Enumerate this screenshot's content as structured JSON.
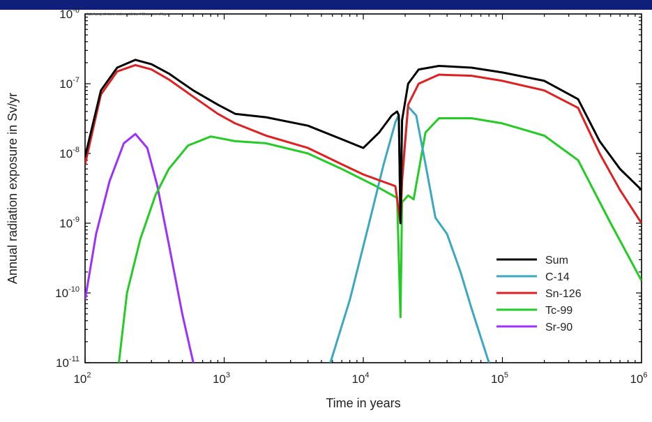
{
  "chart_data": {
    "type": "line",
    "title": "",
    "note": "label project stone sicken sidebar il Blow xx-x of lay",
    "xlabel": "Time in years",
    "ylabel": "Annual radiation exposure in Sv/yr",
    "xscale": "log",
    "yscale": "log",
    "xlim": [
      100,
      1000000
    ],
    "ylim": [
      1e-11,
      1e-06
    ],
    "x_ticks": [
      {
        "base": "10",
        "exp": "2",
        "value": 100
      },
      {
        "base": "10",
        "exp": "3",
        "value": 1000
      },
      {
        "base": "10",
        "exp": "4",
        "value": 10000
      },
      {
        "base": "10",
        "exp": "5",
        "value": 100000
      },
      {
        "base": "10",
        "exp": "6",
        "value": 1000000
      }
    ],
    "y_ticks": [
      {
        "base": "10",
        "exp": "-11",
        "value": 1e-11
      },
      {
        "base": "10",
        "exp": "-10",
        "value": 1e-10
      },
      {
        "base": "10",
        "exp": "-9",
        "value": 1e-09
      },
      {
        "base": "10",
        "exp": "-8",
        "value": 1e-08
      },
      {
        "base": "10",
        "exp": "-7",
        "value": 1e-07
      },
      {
        "base": "10",
        "exp": "-6",
        "value": 1e-06
      }
    ],
    "legend_position": "bottom-right",
    "grid": false,
    "series": [
      {
        "name": "Sum",
        "color": "#000000",
        "points": [
          [
            100,
            9e-09
          ],
          [
            130,
            8e-08
          ],
          [
            170,
            1.7e-07
          ],
          [
            230,
            2.2e-07
          ],
          [
            300,
            1.9e-07
          ],
          [
            400,
            1.4e-07
          ],
          [
            600,
            8e-08
          ],
          [
            900,
            5e-08
          ],
          [
            1200,
            3.7e-08
          ],
          [
            2000,
            3.3e-08
          ],
          [
            4000,
            2.5e-08
          ],
          [
            7000,
            1.6e-08
          ],
          [
            10000,
            1.2e-08
          ],
          [
            13000,
            2e-08
          ],
          [
            16000,
            3.5e-08
          ],
          [
            17500,
            4e-08
          ],
          [
            18000,
            3.5e-08
          ],
          [
            18500,
            1e-09
          ],
          [
            19000,
            3e-08
          ],
          [
            21000,
            1e-07
          ],
          [
            25000,
            1.6e-07
          ],
          [
            35000,
            1.8e-07
          ],
          [
            60000,
            1.7e-07
          ],
          [
            100000,
            1.45e-07
          ],
          [
            200000,
            1.1e-07
          ],
          [
            350000,
            6e-08
          ],
          [
            500000,
            1.5e-08
          ],
          [
            700000,
            6e-09
          ],
          [
            1000000,
            3e-09
          ]
        ]
      },
      {
        "name": "C-14",
        "color": "#3aa8c1",
        "points": [
          [
            5800,
            1e-11
          ],
          [
            8000,
            8e-11
          ],
          [
            11000,
            1e-09
          ],
          [
            14000,
            7e-09
          ],
          [
            17000,
            2.8e-08
          ],
          [
            18000,
            3.6e-08
          ],
          [
            18500,
            1e-09
          ],
          [
            19000,
            5e-09
          ],
          [
            21000,
            4.7e-08
          ],
          [
            24000,
            3.5e-08
          ],
          [
            28000,
            7e-09
          ],
          [
            33000,
            1.2e-09
          ],
          [
            40000,
            7e-10
          ],
          [
            50000,
            2e-10
          ],
          [
            60000,
            6e-11
          ],
          [
            80000,
            1e-11
          ]
        ]
      },
      {
        "name": "Sn-126",
        "color": "#e02020",
        "points": [
          [
            100,
            7e-09
          ],
          [
            130,
            7e-08
          ],
          [
            170,
            1.5e-07
          ],
          [
            230,
            1.85e-07
          ],
          [
            300,
            1.6e-07
          ],
          [
            400,
            1.15e-07
          ],
          [
            600,
            6.5e-08
          ],
          [
            900,
            3.7e-08
          ],
          [
            1200,
            2.7e-08
          ],
          [
            2000,
            1.8e-08
          ],
          [
            4000,
            1.2e-08
          ],
          [
            7000,
            7e-09
          ],
          [
            10000,
            5e-09
          ],
          [
            17000,
            3.4e-09
          ],
          [
            18000,
            1.5e-09
          ],
          [
            18500,
            1e-09
          ],
          [
            19000,
            4e-09
          ],
          [
            21000,
            5e-08
          ],
          [
            25000,
            1e-07
          ],
          [
            35000,
            1.35e-07
          ],
          [
            60000,
            1.3e-07
          ],
          [
            100000,
            1.1e-07
          ],
          [
            200000,
            8e-08
          ],
          [
            350000,
            4.5e-08
          ],
          [
            500000,
            1e-08
          ],
          [
            700000,
            3e-09
          ],
          [
            1000000,
            1e-09
          ]
        ]
      },
      {
        "name": "Tc-99",
        "color": "#22cc22",
        "points": [
          [
            175,
            1e-11
          ],
          [
            200,
            1e-10
          ],
          [
            250,
            6e-10
          ],
          [
            320,
            2.5e-09
          ],
          [
            400,
            6e-09
          ],
          [
            550,
            1.3e-08
          ],
          [
            800,
            1.75e-08
          ],
          [
            1200,
            1.5e-08
          ],
          [
            2000,
            1.4e-08
          ],
          [
            4000,
            1e-08
          ],
          [
            7000,
            6e-09
          ],
          [
            12000,
            3.5e-09
          ],
          [
            17500,
            2.3e-09
          ],
          [
            18500,
            4.5e-11
          ],
          [
            19000,
            2e-09
          ],
          [
            21000,
            2.5e-09
          ],
          [
            23000,
            2.2e-09
          ],
          [
            28000,
            2e-08
          ],
          [
            35000,
            3.2e-08
          ],
          [
            60000,
            3.2e-08
          ],
          [
            100000,
            2.7e-08
          ],
          [
            200000,
            1.8e-08
          ],
          [
            350000,
            8e-09
          ],
          [
            600000,
            1e-09
          ],
          [
            1000000,
            1.5e-10
          ]
        ]
      },
      {
        "name": "Sr-90",
        "color": "#9b30ff",
        "points": [
          [
            100,
            8e-11
          ],
          [
            120,
            7e-10
          ],
          [
            150,
            4e-09
          ],
          [
            190,
            1.4e-08
          ],
          [
            230,
            1.9e-08
          ],
          [
            280,
            1.2e-08
          ],
          [
            330,
            3.5e-09
          ],
          [
            400,
            5e-10
          ],
          [
            500,
            5e-11
          ],
          [
            600,
            1e-11
          ]
        ]
      }
    ]
  }
}
